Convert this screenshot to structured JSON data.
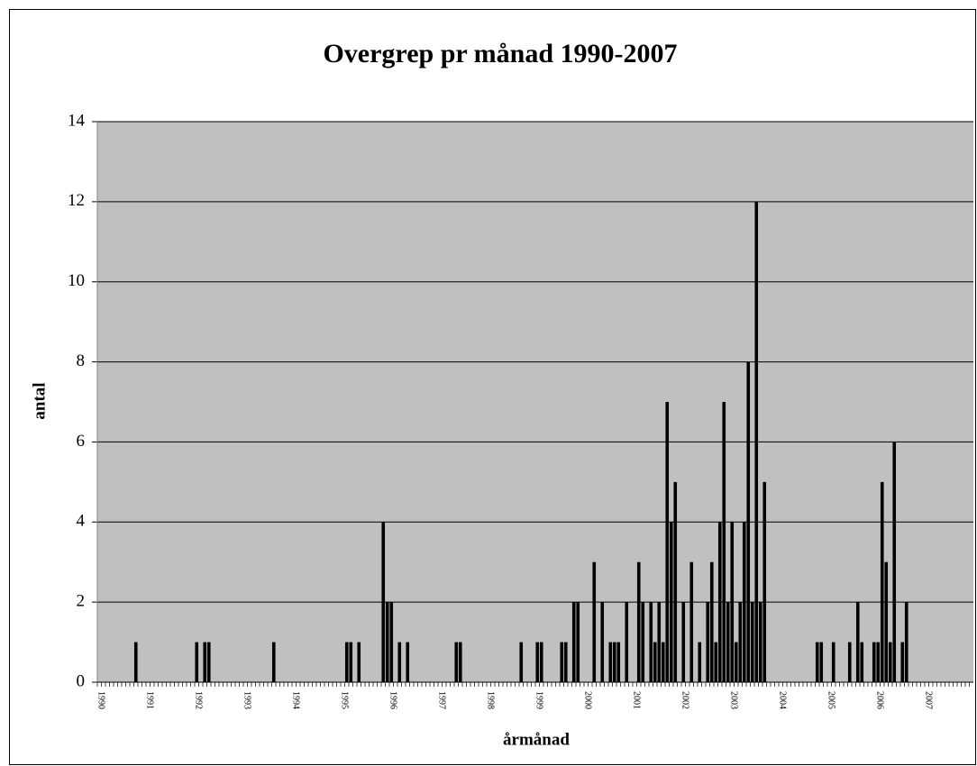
{
  "chart_data": {
    "type": "bar",
    "title": "Overgrep pr månad 1990-2007",
    "x_label": "årmånad",
    "y_label": "antal",
    "categories": [
      "1990",
      null,
      null,
      null,
      null,
      null,
      null,
      null,
      null,
      null,
      null,
      null,
      "1991",
      null,
      null,
      null,
      null,
      null,
      null,
      null,
      null,
      null,
      null,
      null,
      "1992",
      null,
      null,
      null,
      null,
      null,
      null,
      null,
      null,
      null,
      null,
      null,
      "1993",
      null,
      null,
      null,
      null,
      null,
      null,
      null,
      null,
      null,
      null,
      null,
      "1994",
      null,
      null,
      null,
      null,
      null,
      null,
      null,
      null,
      null,
      null,
      null,
      "1995",
      null,
      null,
      null,
      null,
      null,
      null,
      null,
      null,
      null,
      null,
      null,
      "1996",
      null,
      null,
      null,
      null,
      null,
      null,
      null,
      null,
      null,
      null,
      null,
      "1997",
      null,
      null,
      null,
      null,
      null,
      null,
      null,
      null,
      null,
      null,
      null,
      "1998",
      null,
      null,
      null,
      null,
      null,
      null,
      null,
      null,
      null,
      null,
      null,
      "1999",
      null,
      null,
      null,
      null,
      null,
      null,
      null,
      null,
      null,
      null,
      null,
      "2000",
      null,
      null,
      null,
      null,
      null,
      null,
      null,
      null,
      null,
      null,
      null,
      "2001",
      null,
      null,
      null,
      null,
      null,
      null,
      null,
      null,
      null,
      null,
      null,
      "2002",
      null,
      null,
      null,
      null,
      null,
      null,
      null,
      null,
      null,
      null,
      null,
      "2003",
      null,
      null,
      null,
      null,
      null,
      null,
      null,
      null,
      null,
      null,
      null,
      "2004",
      null,
      null,
      null,
      null,
      null,
      null,
      null,
      null,
      null,
      null,
      null,
      "2005",
      null,
      null,
      null,
      null,
      null,
      null,
      null,
      null,
      null,
      null,
      null,
      "2006",
      null,
      null,
      null,
      null,
      null,
      null,
      null,
      null,
      null,
      null,
      null,
      "2007",
      null,
      null,
      null,
      null,
      null,
      null,
      null,
      null,
      null,
      null,
      null
    ],
    "values": [
      0,
      0,
      0,
      0,
      0,
      0,
      0,
      0,
      0,
      1,
      0,
      0,
      0,
      0,
      0,
      0,
      0,
      0,
      0,
      0,
      0,
      0,
      0,
      0,
      1,
      0,
      1,
      1,
      0,
      0,
      0,
      0,
      0,
      0,
      0,
      0,
      0,
      0,
      0,
      0,
      0,
      0,
      0,
      1,
      0,
      0,
      0,
      0,
      0,
      0,
      0,
      0,
      0,
      0,
      0,
      0,
      0,
      0,
      0,
      0,
      0,
      1,
      1,
      0,
      1,
      0,
      0,
      0,
      0,
      0,
      4,
      2,
      2,
      0,
      1,
      0,
      1,
      0,
      0,
      0,
      0,
      0,
      0,
      0,
      0,
      0,
      0,
      0,
      1,
      1,
      0,
      0,
      0,
      0,
      0,
      0,
      0,
      0,
      0,
      0,
      0,
      0,
      0,
      0,
      1,
      0,
      0,
      0,
      1,
      1,
      0,
      0,
      0,
      0,
      1,
      1,
      0,
      2,
      2,
      0,
      0,
      0,
      3,
      0,
      2,
      0,
      1,
      1,
      1,
      0,
      2,
      0,
      0,
      3,
      2,
      0,
      2,
      1,
      2,
      1,
      7,
      4,
      5,
      0,
      2,
      0,
      3,
      0,
      1,
      0,
      2,
      3,
      1,
      4,
      7,
      2,
      4,
      1,
      2,
      4,
      8,
      2,
      12,
      2,
      5,
      0,
      0,
      0,
      0,
      0,
      0,
      0,
      0,
      0,
      0,
      0,
      0,
      1,
      1,
      0,
      0,
      1,
      0,
      0,
      0,
      1,
      0,
      2,
      1,
      0,
      0,
      1,
      1,
      5,
      3,
      1,
      6,
      0,
      1,
      2,
      0,
      0,
      0,
      0,
      0,
      0,
      0,
      0,
      0,
      0,
      0,
      0,
      0,
      0,
      0,
      0
    ],
    "color": "#000000",
    "background": "#c0c0c0",
    "ylim": [
      0,
      14
    ],
    "yticks": [
      0,
      2,
      4,
      6,
      8,
      10,
      12,
      14
    ],
    "grid": true
  }
}
